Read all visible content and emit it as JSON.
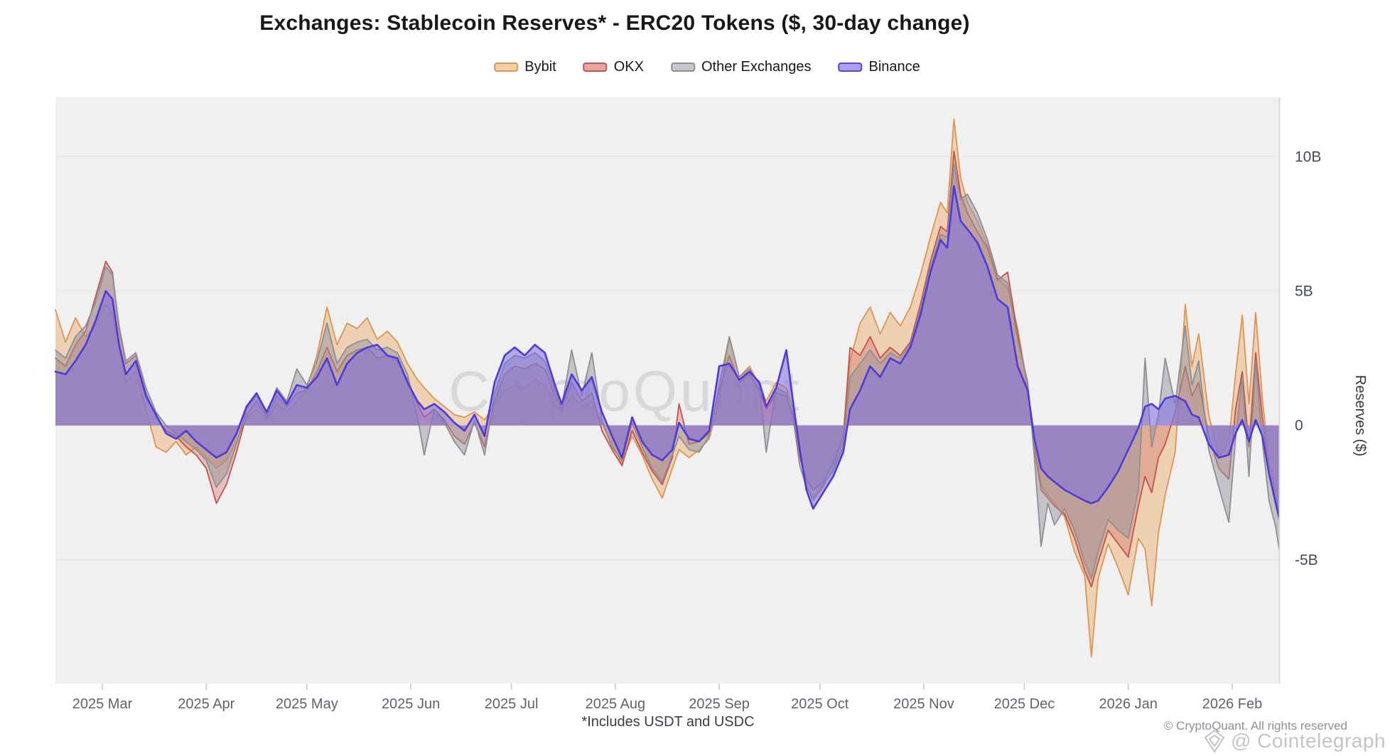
{
  "title": "Exchanges: Stablecoin Reserves* - ERC20 Tokens ($, 30-day change)",
  "legend": {
    "items": [
      {
        "label": "Bybit",
        "fill": "#f2cfa4",
        "border": "#dc9552"
      },
      {
        "label": "OKX",
        "fill": "#e7a79f",
        "border": "#c4524e"
      },
      {
        "label": "Other Exchanges",
        "fill": "#c6c6cc",
        "border": "#8e8e96"
      },
      {
        "label": "Binance",
        "fill": "#ab9ff0",
        "border": "#5546da"
      }
    ]
  },
  "watermark": "CryptoQuant",
  "footnote": "*Includes USDT and USDC",
  "copyright": "© CryptoQuant. All rights reserved",
  "bottom_watermark": "@ Cointelegraph",
  "y_axis": {
    "title": "Reserves ($)"
  },
  "chart_data": {
    "type": "area",
    "title": "Exchanges: Stablecoin Reserves* - ERC20 Tokens ($, 30-day change)",
    "xlabel": "",
    "ylabel": "Reserves ($)",
    "x_unit": "days since 2025-02-15",
    "x_domain": [
      0,
      365
    ],
    "ylim": [
      -9.6,
      12.2
    ],
    "grid": true,
    "grid_values": [
      10,
      5,
      0,
      -5
    ],
    "y_ticks": [
      {
        "value": 10,
        "label": "10B"
      },
      {
        "value": 5,
        "label": "5B"
      },
      {
        "value": 0,
        "label": "0"
      },
      {
        "value": -5,
        "label": "-5B"
      }
    ],
    "x_ticks": [
      {
        "day": 14,
        "label": "2025 Mar"
      },
      {
        "day": 45,
        "label": "2025 Apr"
      },
      {
        "day": 75,
        "label": "2025 May"
      },
      {
        "day": 106,
        "label": "2025 Jun"
      },
      {
        "day": 136,
        "label": "2025 Jul"
      },
      {
        "day": 167,
        "label": "2025 Aug"
      },
      {
        "day": 198,
        "label": "2025 Sep"
      },
      {
        "day": 228,
        "label": "2025 Oct"
      },
      {
        "day": 259,
        "label": "2025 Nov"
      },
      {
        "day": 289,
        "label": "2025 Dec"
      },
      {
        "day": 320,
        "label": "2026 Jan"
      },
      {
        "day": 351,
        "label": "2026 Feb"
      }
    ],
    "legend_position": "top",
    "x": [
      0,
      3,
      6,
      9,
      12,
      15,
      17,
      19,
      21,
      24,
      27,
      30,
      33,
      36,
      39,
      42,
      45,
      48,
      51,
      54,
      57,
      60,
      63,
      66,
      69,
      72,
      75,
      78,
      81,
      84,
      87,
      90,
      93,
      96,
      99,
      102,
      105,
      108,
      110,
      113,
      116,
      119,
      122,
      125,
      128,
      131,
      134,
      137,
      140,
      143,
      146,
      149,
      151,
      154,
      157,
      160,
      163,
      166,
      169,
      172,
      175,
      178,
      181,
      184,
      186,
      189,
      192,
      195,
      198,
      201,
      204,
      207,
      210,
      212,
      215,
      218,
      220,
      222,
      224,
      226,
      229,
      232,
      235,
      237,
      240,
      243,
      246,
      249,
      252,
      255,
      258,
      261,
      264,
      266,
      268,
      270,
      272,
      275,
      278,
      281,
      284,
      287,
      290,
      292,
      294,
      296,
      298,
      301,
      304,
      307,
      309,
      311,
      314,
      317,
      320,
      323,
      325,
      327,
      329,
      331,
      334,
      337,
      339,
      341,
      344,
      347,
      350,
      352,
      354,
      356,
      358,
      360,
      362,
      364,
      365
    ],
    "series": [
      {
        "name": "Bybit",
        "stroke": "#dc9552",
        "fill": "rgba(235,175,115,0.50)",
        "stroke_width": 1.8,
        "values": [
          4.3,
          3.1,
          4.0,
          3.3,
          3.7,
          4.5,
          4.2,
          2.8,
          1.6,
          2.0,
          0.6,
          -0.8,
          -1.0,
          -0.6,
          -1.1,
          -0.8,
          -1.2,
          -1.6,
          -1.3,
          -0.6,
          0.3,
          0.6,
          0.2,
          0.8,
          0.5,
          0.9,
          1.4,
          2.6,
          4.4,
          3.0,
          3.8,
          3.6,
          4.0,
          3.2,
          3.5,
          3.1,
          2.3,
          1.7,
          1.4,
          1.0,
          0.7,
          0.4,
          0.3,
          0.5,
          0.2,
          0.8,
          1.3,
          1.5,
          1.4,
          1.7,
          1.5,
          0.8,
          0.5,
          1.1,
          0.7,
          0.9,
          0.1,
          -0.7,
          -1.4,
          -0.4,
          -1.1,
          -2.0,
          -2.7,
          -1.6,
          -0.9,
          -1.2,
          -0.9,
          -0.5,
          0.9,
          3.3,
          1.8,
          2.2,
          1.5,
          0.9,
          1.6,
          1.4,
          0.6,
          -1.0,
          -2.2,
          -2.8,
          -2.3,
          -1.6,
          -0.6,
          2.4,
          3.8,
          4.4,
          3.4,
          4.2,
          3.7,
          4.4,
          5.6,
          7.0,
          8.3,
          7.9,
          11.4,
          9.2,
          8.3,
          7.6,
          6.7,
          5.5,
          5.1,
          3.6,
          1.4,
          -0.6,
          -2.2,
          -2.6,
          -2.9,
          -3.4,
          -4.7,
          -5.6,
          -8.6,
          -5.7,
          -4.4,
          -5.3,
          -6.3,
          -4.2,
          -4.6,
          -6.7,
          -4.0,
          -2.6,
          -1.0,
          4.5,
          2.2,
          3.4,
          0.4,
          -1.2,
          -0.6,
          1.9,
          4.1,
          0.8,
          4.2,
          1.0,
          -1.4,
          -2.6,
          -3.2
        ]
      },
      {
        "name": "OKX",
        "stroke": "#c4524e",
        "fill": "rgba(210,110,100,0.38)",
        "stroke_width": 1.8,
        "values": [
          2.5,
          2.2,
          3.0,
          3.5,
          4.8,
          6.1,
          5.7,
          3.6,
          2.3,
          2.6,
          1.2,
          0.3,
          -0.2,
          -0.4,
          -0.8,
          -1.1,
          -1.6,
          -2.9,
          -2.2,
          -1.0,
          0.4,
          0.9,
          0.3,
          1.1,
          0.7,
          1.2,
          1.3,
          2.0,
          2.9,
          2.0,
          2.6,
          2.8,
          2.9,
          2.5,
          2.6,
          2.4,
          1.7,
          0.8,
          0.3,
          0.6,
          0.2,
          -0.4,
          -0.7,
          0.1,
          -0.8,
          0.9,
          1.9,
          2.2,
          2.1,
          2.3,
          2.1,
          1.1,
          0.6,
          1.6,
          0.9,
          1.2,
          -0.2,
          -0.9,
          -1.5,
          -0.2,
          -1.0,
          -1.7,
          -2.2,
          -1.2,
          0.8,
          -0.7,
          -0.6,
          -0.3,
          1.3,
          2.6,
          1.6,
          1.9,
          1.3,
          0.6,
          1.2,
          1.1,
          0.4,
          -1.2,
          -2.0,
          -2.4,
          -2.1,
          -1.4,
          -0.4,
          2.9,
          2.6,
          3.3,
          2.5,
          2.9,
          2.6,
          3.1,
          4.5,
          6.1,
          7.4,
          7.2,
          10.2,
          8.6,
          7.9,
          7.2,
          6.6,
          5.4,
          5.7,
          3.4,
          1.5,
          -0.9,
          -2.4,
          -2.7,
          -3.0,
          -3.3,
          -4.2,
          -5.4,
          -6.0,
          -5.1,
          -3.9,
          -4.4,
          -4.9,
          -3.0,
          -1.9,
          -2.5,
          -1.2,
          -0.7,
          0.5,
          2.2,
          1.1,
          1.6,
          -0.4,
          -1.6,
          -2.0,
          0.6,
          2.0,
          -0.8,
          2.7,
          0.3,
          -1.8,
          -3.0,
          -3.5
        ]
      },
      {
        "name": "Other Exchanges",
        "stroke": "#8e8e96",
        "fill": "rgba(150,150,158,0.50)",
        "stroke_width": 1.8,
        "values": [
          2.8,
          2.5,
          3.3,
          3.7,
          4.6,
          5.9,
          5.6,
          3.7,
          2.4,
          2.7,
          1.4,
          0.5,
          0.0,
          -0.3,
          -0.6,
          -0.9,
          -1.3,
          -2.3,
          -1.8,
          -0.7,
          0.6,
          1.1,
          0.4,
          1.4,
          0.9,
          2.1,
          1.5,
          2.4,
          3.8,
          2.3,
          2.9,
          3.1,
          3.2,
          2.8,
          2.9,
          2.7,
          1.9,
          0.3,
          -1.1,
          0.6,
          0.1,
          -0.6,
          -1.1,
          0.2,
          -1.1,
          1.2,
          2.3,
          2.6,
          2.5,
          2.7,
          2.4,
          1.3,
          0.7,
          2.8,
          1.1,
          2.7,
          0.2,
          -0.8,
          -1.3,
          0.1,
          -0.8,
          -1.6,
          -2.1,
          -1.1,
          -0.4,
          -0.9,
          -1.0,
          -0.4,
          1.5,
          3.3,
          1.8,
          2.1,
          1.5,
          -1.0,
          1.4,
          1.2,
          0.3,
          -1.5,
          -2.3,
          -2.7,
          -2.2,
          -1.7,
          -0.8,
          1.8,
          2.3,
          2.8,
          2.3,
          2.7,
          2.5,
          3.0,
          4.3,
          5.9,
          7.1,
          7.0,
          9.7,
          8.4,
          8.6,
          7.9,
          6.9,
          5.6,
          5.3,
          3.2,
          1.6,
          -1.2,
          -4.5,
          -2.9,
          -3.7,
          -3.1,
          -3.9,
          -5.1,
          -5.7,
          -4.7,
          -3.5,
          -3.9,
          -4.2,
          -2.4,
          2.5,
          -0.8,
          0.4,
          2.5,
          0.8,
          3.7,
          1.5,
          2.4,
          -0.9,
          -2.3,
          -3.6,
          -0.5,
          1.8,
          -1.9,
          2.4,
          -0.6,
          -2.8,
          -3.8,
          -4.6
        ]
      },
      {
        "name": "Binance",
        "stroke": "#4d3bd8",
        "fill": "rgba(126,110,228,0.55)",
        "stroke_width": 2.6,
        "values": [
          2.0,
          1.9,
          2.4,
          3.0,
          3.9,
          5.0,
          4.7,
          3.0,
          1.9,
          2.4,
          1.1,
          0.4,
          -0.3,
          -0.5,
          -0.2,
          -0.6,
          -0.9,
          -1.2,
          -1.0,
          -0.3,
          0.7,
          1.2,
          0.5,
          1.3,
          0.8,
          1.5,
          1.4,
          1.8,
          2.5,
          1.5,
          2.3,
          2.7,
          2.9,
          3.0,
          2.6,
          2.5,
          1.6,
          0.9,
          0.6,
          0.8,
          0.5,
          0.1,
          -0.2,
          0.4,
          -0.4,
          1.6,
          2.6,
          2.9,
          2.6,
          3.0,
          2.7,
          1.5,
          0.8,
          1.9,
          1.3,
          1.8,
          0.5,
          -0.4,
          -1.2,
          0.3,
          -0.6,
          -1.1,
          -1.3,
          -0.9,
          0.1,
          -0.5,
          -0.6,
          -0.2,
          2.2,
          2.3,
          1.7,
          2.0,
          1.6,
          0.7,
          1.4,
          2.8,
          0.9,
          -0.9,
          -2.4,
          -3.1,
          -2.5,
          -1.9,
          -1.0,
          0.6,
          1.3,
          2.2,
          1.8,
          2.5,
          2.3,
          2.9,
          4.1,
          5.7,
          6.9,
          6.6,
          8.9,
          7.6,
          7.3,
          6.8,
          5.9,
          4.7,
          4.4,
          2.2,
          1.3,
          -0.5,
          -1.6,
          -1.9,
          -2.1,
          -2.4,
          -2.6,
          -2.8,
          -2.9,
          -2.8,
          -2.3,
          -1.7,
          -0.9,
          -0.1,
          0.7,
          0.8,
          0.6,
          1.0,
          1.1,
          0.9,
          0.4,
          0.3,
          -0.7,
          -1.2,
          -1.1,
          -0.3,
          0.2,
          -0.6,
          0.2,
          -0.4,
          -1.8,
          -2.9,
          -3.4
        ]
      }
    ]
  },
  "colors": {
    "plot_bg": "#f0f0f1",
    "gridline": "#e8e8eb",
    "axis_line": "#d9d9dd",
    "tick": "#c6c6cc",
    "tick_label": "#5c6470",
    "y_label": "#434b57",
    "watermark": "#b9b9c0"
  }
}
